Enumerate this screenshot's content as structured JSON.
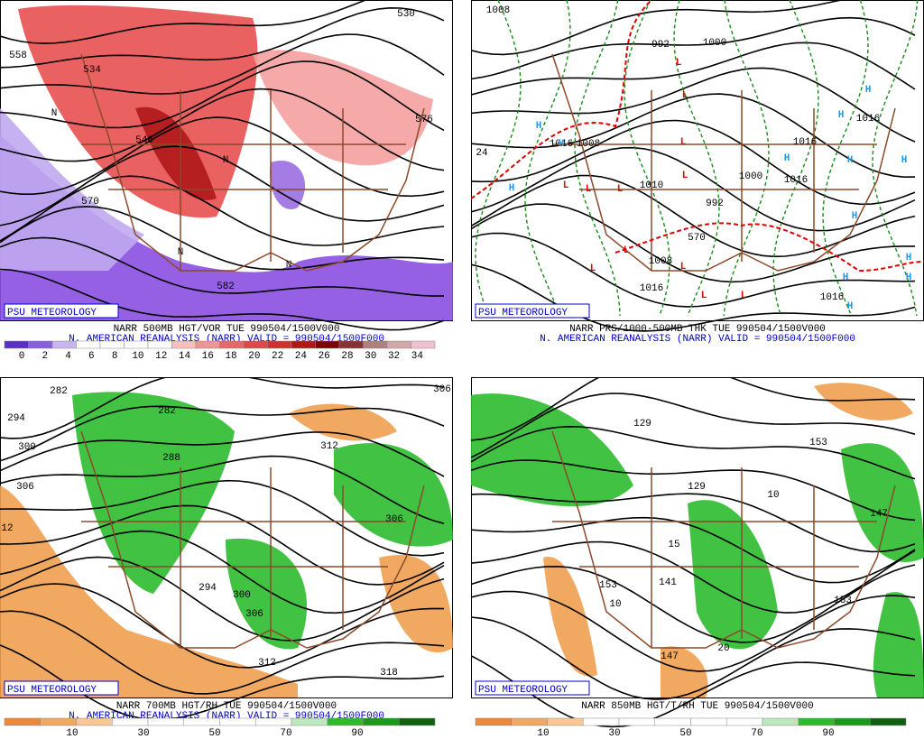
{
  "panels": [
    {
      "label": "PSU METEOROLOGY",
      "title": "NARR 500MB HGT/VOR TUE 990504/1500V000",
      "subtitle": "N. AMERICAN REANALYSIS (NARR) VALID = 990504/1500F000",
      "colorbar": [
        "0",
        "2",
        "4",
        "6",
        "8",
        "10",
        "12",
        "14",
        "16",
        "18",
        "20",
        "22",
        "24",
        "26",
        "28",
        "30",
        "32",
        "34"
      ],
      "contour_labels": [
        "558",
        "534",
        "546",
        "570",
        "582",
        "530",
        "576",
        "N",
        "N",
        "N",
        "N"
      ]
    },
    {
      "label": "PSU METEOROLOGY",
      "title": "NARR PRS/1000-500MB THK TUE 990504/1500V000",
      "subtitle": "N. AMERICAN REANALYSIS (NARR) VALID = 990504/1500F000",
      "contour_labels": [
        "1008",
        "992",
        "1000",
        "1016",
        "1010",
        "1000",
        "992",
        "1008",
        "1016",
        "1016",
        "1016",
        "570",
        "24",
        "1016",
        "1008",
        "1016"
      ],
      "symbols": [
        "H",
        "H",
        "H",
        "H",
        "H",
        "H",
        "H",
        "H",
        "H",
        "H",
        "H",
        "H",
        "H",
        "L",
        "L",
        "L",
        "L",
        "L",
        "L",
        "L",
        "L",
        "L",
        "L",
        "L",
        "L"
      ]
    },
    {
      "label": "PSU METEOROLOGY",
      "title": "NARR 700MB HGT/RH TUE 990504/1500V000",
      "subtitle": "N. AMERICAN REANALYSIS (NARR) VALID = 990504/1500F000",
      "colorbar": [
        "10",
        "30",
        "50",
        "70",
        "90"
      ],
      "contour_labels": [
        "282",
        "282",
        "294",
        "300",
        "306",
        "288",
        "312",
        "306",
        "294",
        "300",
        "306",
        "312",
        "318",
        "306",
        "12"
      ]
    },
    {
      "label": "PSU METEOROLOGY",
      "title": "NARR 850MB HGT/T/RH TUE 990504/1500V000",
      "colorbar": [
        "10",
        "30",
        "50",
        "70",
        "90"
      ],
      "contour_labels": [
        "129",
        "153",
        "129",
        "147",
        "153",
        "141",
        "147",
        "153",
        "15",
        "10",
        "10",
        "20"
      ]
    }
  ]
}
